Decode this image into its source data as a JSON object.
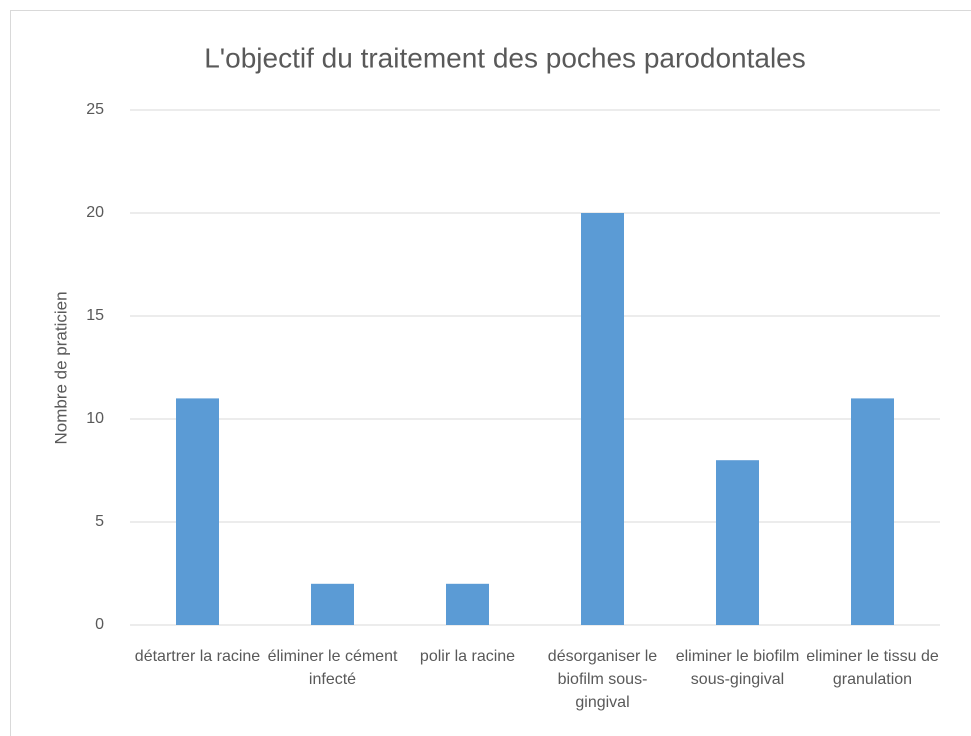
{
  "chart_data": {
    "type": "bar",
    "title": "L'objectif du traitement des poches parodontales",
    "y_label": "Nombre de praticien",
    "categories": [
      "détartrer la racine",
      "éliminer le cément infecté",
      "polir la racine",
      "désorganiser le biofilm sous-gingival",
      "eliminer le biofilm sous-gingival",
      "eliminer le tissu de granulation"
    ],
    "values": [
      11,
      2,
      2,
      20,
      8,
      11
    ],
    "color": "#5b9bd5",
    "ylim": [
      0,
      25
    ],
    "yticks": [
      0,
      5,
      10,
      15,
      20,
      25
    ],
    "grid": true
  }
}
